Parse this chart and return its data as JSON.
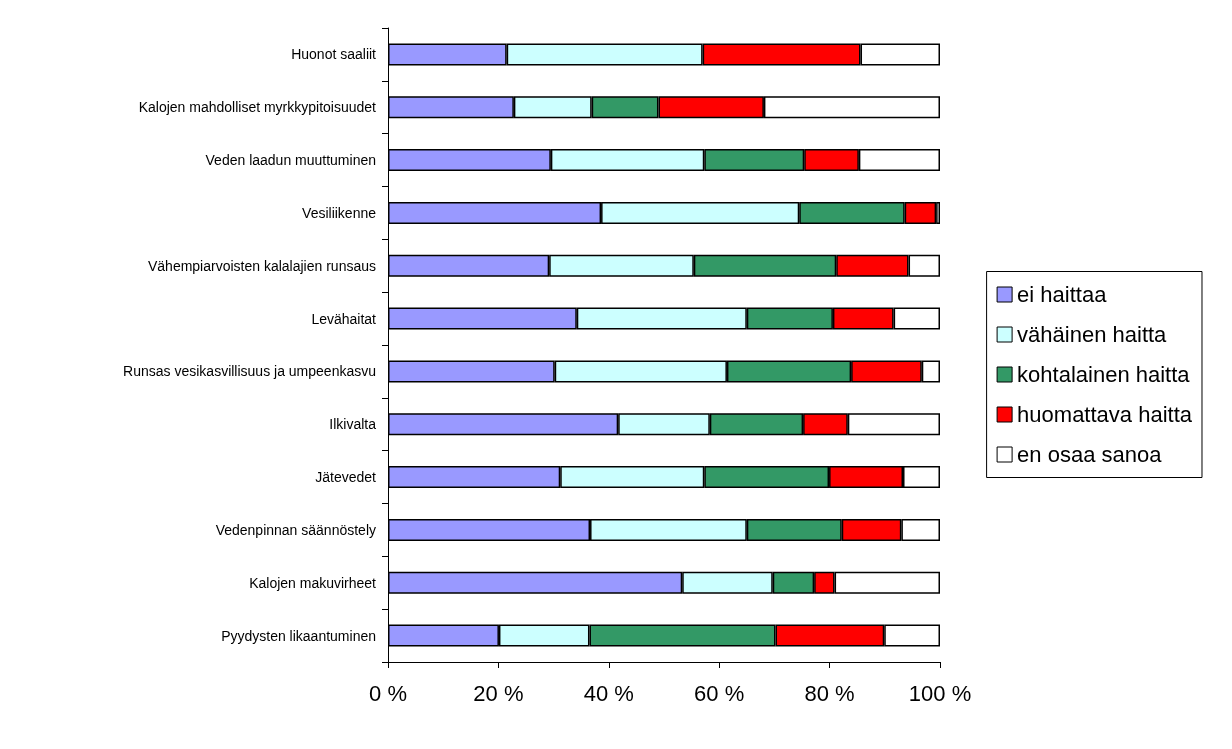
{
  "chart_data": {
    "type": "bar",
    "orientation": "horizontal",
    "stacked": true,
    "categories": [
      "Huonot saaliit",
      "Kalojen mahdolliset myrkkypitoisuudet",
      "Veden laadun muuttuminen",
      "Vesiliikenne",
      "Vähempiarvoisten kalalajien runsaus",
      "Levähaitat",
      "Runsas vesikasvillisuus ja umpeenkasvu",
      "Ilkivalta",
      "Jätevedet",
      "Vedenpinnan säännöstely",
      "Kalojen makuvirheet",
      "Pyydysten likaantuminen"
    ],
    "series": [
      {
        "name": "ei haittaa",
        "color": "#9999ff",
        "values": [
          21.5,
          22.8,
          29.5,
          38.6,
          29.2,
          34.2,
          30.2,
          41.7,
          31.2,
          36.6,
          53.3,
          20.1
        ]
      },
      {
        "name": "vähäinen haitta",
        "color": "#ccffff",
        "values": [
          35.5,
          14.1,
          27.8,
          35.9,
          26.2,
          30.8,
          31.2,
          16.6,
          26.1,
          28.4,
          16.4,
          16.4
        ]
      },
      {
        "name": "kohtalainen haitta",
        "color": "#339966",
        "values": [
          0,
          12.1,
          18.1,
          19.1,
          25.8,
          15.6,
          22.5,
          16.9,
          22.6,
          17.2,
          7.5,
          33.7
        ]
      },
      {
        "name": "huomattava haitta",
        "color": "#ff0000",
        "values": [
          28.6,
          19.1,
          9.9,
          5.7,
          13.1,
          11.0,
          12.8,
          8.1,
          13.4,
          10.8,
          3.7,
          19.7
        ]
      },
      {
        "name": "en osaa sanoa",
        "color": "#ffffff",
        "values": [
          14.4,
          31.9,
          14.7,
          0.7,
          5.7,
          8.4,
          3.3,
          16.7,
          6.7,
          7.0,
          19.1,
          10.1
        ]
      }
    ],
    "xlim": [
      0,
      100
    ],
    "xticks": [
      {
        "value": 0,
        "label": "0 %"
      },
      {
        "value": 20,
        "label": "20 %"
      },
      {
        "value": 40,
        "label": "40 %"
      },
      {
        "value": 60,
        "label": "60 %"
      },
      {
        "value": 80,
        "label": "80 %"
      },
      {
        "value": 100,
        "label": "100 %"
      }
    ],
    "grid": false,
    "legend": "right"
  }
}
